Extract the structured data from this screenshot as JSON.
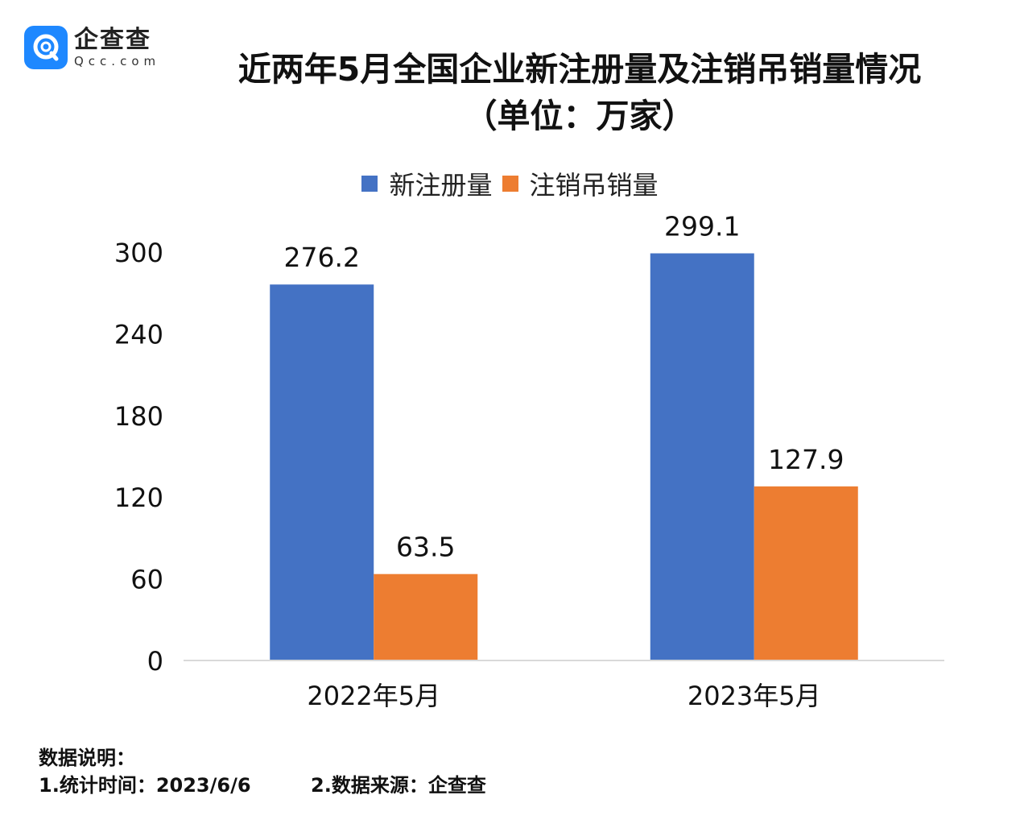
{
  "logo": {
    "cn": "企查查",
    "en": "Qcc.com"
  },
  "title": {
    "line1": "近两年5月全国企业新注册量及注销吊销量情况",
    "line2": "（单位：万家）"
  },
  "chart_data": {
    "type": "bar",
    "categories": [
      "2022年5月",
      "2023年5月"
    ],
    "series": [
      {
        "name": "新注册量",
        "values": [
          276.2,
          299.1
        ],
        "color": "#4472c4"
      },
      {
        "name": "注销吊销量",
        "values": [
          63.5,
          127.9
        ],
        "color": "#ed7d31"
      }
    ],
    "yticks": [
      0,
      60,
      120,
      180,
      240,
      300
    ],
    "ylim": [
      0,
      300
    ],
    "grid": false,
    "legend_position": "top"
  },
  "notes": {
    "heading": "数据说明：",
    "item1": "1.统计时间：2023/6/6",
    "item2": "2.数据来源：企查查"
  }
}
